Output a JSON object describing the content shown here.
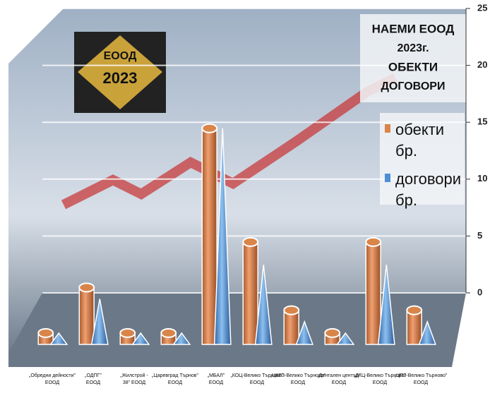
{
  "chart_data": {
    "type": "bar3d",
    "title_lines": [
      "НАЕМИ ЕООД",
      "2023г.",
      "ОБЕКТИ",
      "ДОГОВОРИ"
    ],
    "logo": [
      "ЕООД",
      "2023"
    ],
    "categories": [
      "„Обредни дейности\" ЕООД",
      "„ОДПГ\" ЕООД",
      "„Жилстрой - 38\" ЕООД",
      "„Царевград Търнов\" ЕООД",
      "„МБАЛ\" ЕООД",
      "„КОЦ-Велико Търново\" ЕООД",
      "„ЦКВЗ-Велико Търново\" ЕООД",
      "„Дентален център\" ЕООД",
      "„ДКЦ-Велико Търново\" ЕООД",
      "„ЦПЗ-Велико Търново\" ЕООД"
    ],
    "series": [
      {
        "name": "обекти бр.",
        "color": "#d9854a",
        "shape": "cylinder",
        "values": [
          1,
          5,
          1,
          1,
          19,
          9,
          3,
          1,
          9,
          3
        ]
      },
      {
        "name": "договори бр.",
        "color": "#4f8fd6",
        "shape": "cone",
        "values": [
          1,
          4,
          1,
          1,
          19,
          7,
          2,
          1,
          7,
          2
        ]
      }
    ],
    "ylim": [
      0,
      25
    ],
    "yticks": [
      0,
      5,
      10,
      15,
      20,
      25
    ],
    "grid": true
  }
}
